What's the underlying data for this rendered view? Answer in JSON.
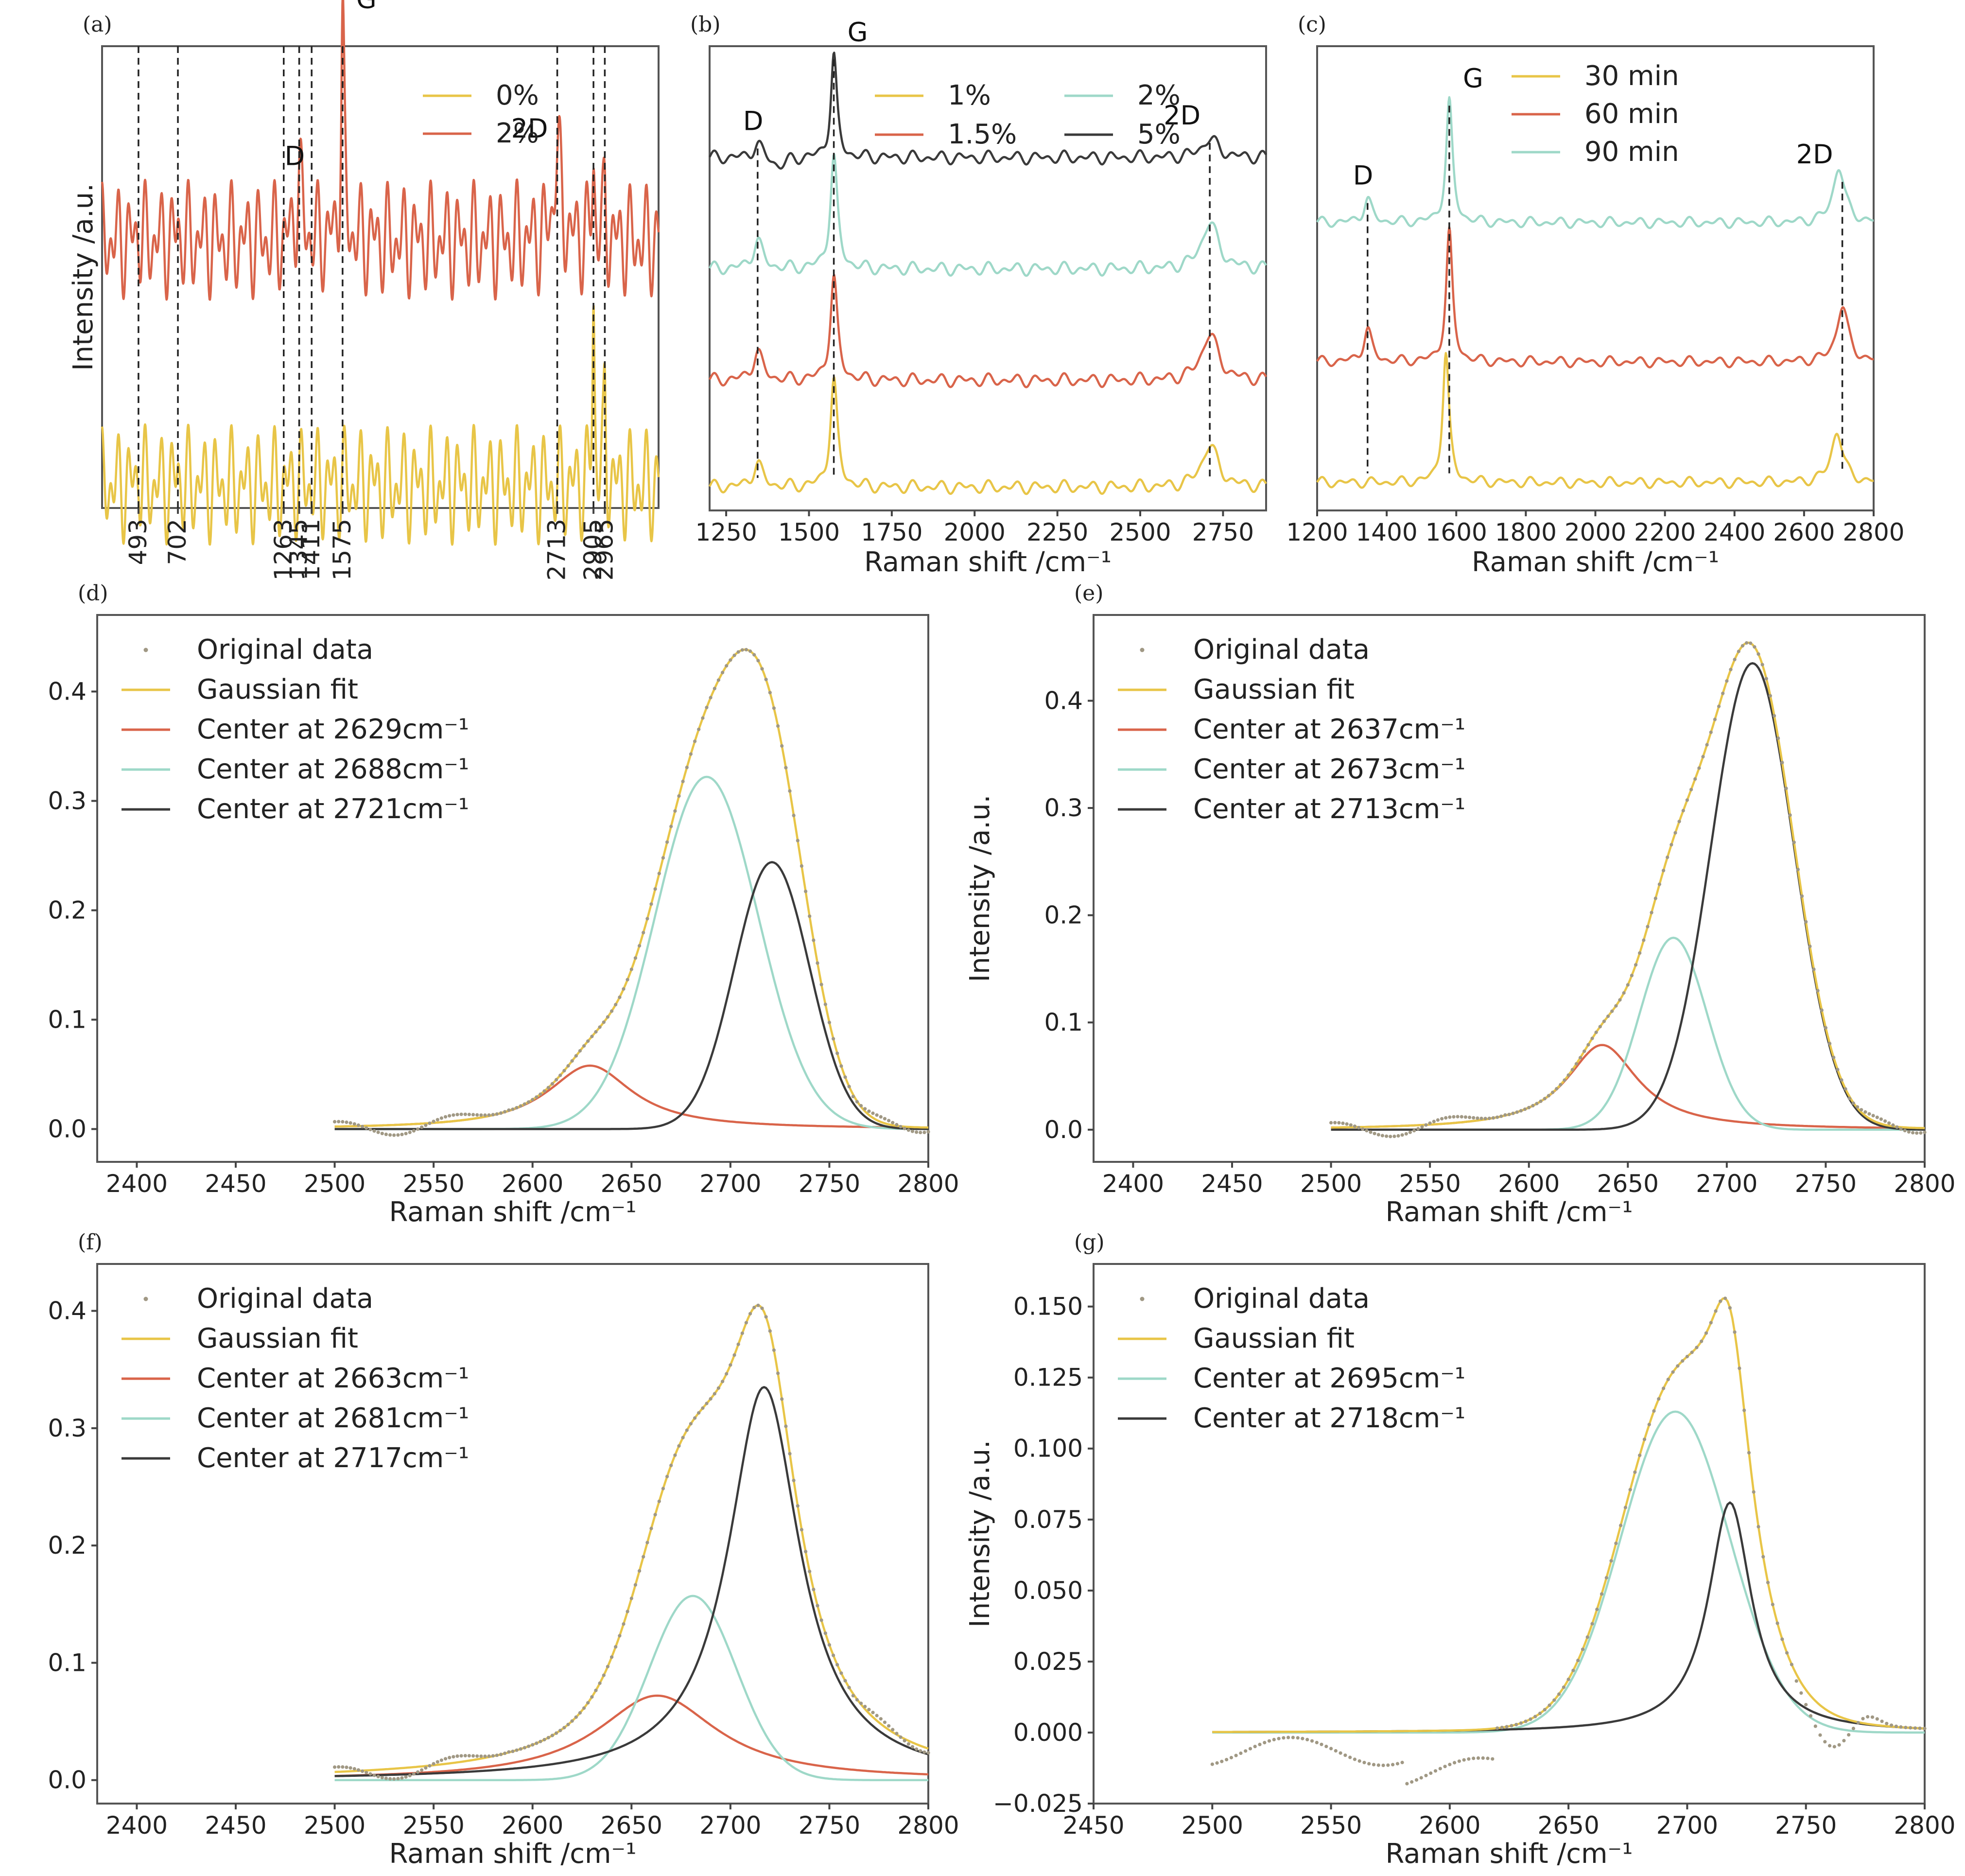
{
  "colors": {
    "yellow": "#e8c547",
    "red": "#d9644a",
    "teal": "#9ed8c8",
    "dark": "#3a3a3a",
    "dots": "#a09884"
  },
  "chart_data": [
    {
      "id": "a",
      "panel_label": "(a)",
      "type": "line",
      "title": "",
      "xlabel": "",
      "ylabel": "Intensity /a.u.",
      "xlim": [
        300,
        3250
      ],
      "x_tick_labels": [
        "493",
        "702",
        "1263",
        "1345",
        "1411",
        "1575",
        "2713",
        "2905",
        "2965"
      ],
      "marked_positions": [
        493,
        702,
        1263,
        1345,
        1411,
        1575,
        2713,
        2905,
        2965
      ],
      "peak_labels": [
        {
          "text": "D",
          "x": 1345
        },
        {
          "text": "G",
          "x": 1575
        },
        {
          "text": "2D",
          "x": 2713
        }
      ],
      "series": [
        {
          "name": "0%",
          "color": "#e8c547",
          "baseline": 0.05,
          "peaks": [
            [
              493,
              0.04,
              8
            ],
            [
              702,
              0.03,
              8
            ],
            [
              1345,
              0.01,
              14
            ],
            [
              1575,
              0.01,
              14
            ],
            [
              2905,
              0.4,
              7
            ],
            [
              2965,
              0.18,
              7
            ]
          ]
        },
        {
          "name": "2%",
          "color": "#d9644a",
          "baseline": 0.58,
          "peaks": [
            [
              493,
              0.03,
              8
            ],
            [
              702,
              0.03,
              8
            ],
            [
              1345,
              0.13,
              18
            ],
            [
              1575,
              0.47,
              10
            ],
            [
              2713,
              0.19,
              22
            ],
            [
              2905,
              0.16,
              9
            ],
            [
              2965,
              0.08,
              8
            ]
          ]
        }
      ],
      "legend": [
        "0%",
        "2%"
      ],
      "legend_position": "top-right"
    },
    {
      "id": "b",
      "panel_label": "(b)",
      "type": "line",
      "xlabel": "Raman shift /cm⁻¹",
      "ylabel": "",
      "xlim": [
        1200,
        2880
      ],
      "x_ticks": [
        1250,
        1500,
        1750,
        2000,
        2250,
        2500,
        2750
      ],
      "peak_labels": [
        {
          "text": "D",
          "x": 1345
        },
        {
          "text": "G",
          "x": 1575
        },
        {
          "text": "2D",
          "x": 2710
        }
      ],
      "marked_positions": [
        1345,
        1575,
        2710
      ],
      "series": [
        {
          "name": "1%",
          "color": "#e8c547",
          "baseline": 0.05,
          "peaks": [
            [
              1345,
              0.05,
              18
            ],
            [
              1575,
              0.23,
              13
            ],
            [
              2710,
              0.09,
              30
            ]
          ]
        },
        {
          "name": "1.5%",
          "color": "#d9644a",
          "baseline": 0.28,
          "peaks": [
            [
              1345,
              0.06,
              18
            ],
            [
              1575,
              0.22,
              13
            ],
            [
              2710,
              0.1,
              30
            ]
          ]
        },
        {
          "name": "2%",
          "color": "#9ed8c8",
          "baseline": 0.52,
          "peaks": [
            [
              1345,
              0.06,
              18
            ],
            [
              1575,
              0.24,
              13
            ],
            [
              2710,
              0.1,
              30
            ]
          ]
        },
        {
          "name": "5%",
          "color": "#3a3a3a",
          "baseline": 0.76,
          "peaks": [
            [
              1345,
              0.03,
              18
            ],
            [
              1410,
              -0.02,
              25
            ],
            [
              1575,
              0.22,
              11
            ],
            [
              2710,
              0.04,
              30
            ]
          ]
        }
      ],
      "legend": [
        "1%",
        "1.5%",
        "2%",
        "5%"
      ],
      "legend_position": "top"
    },
    {
      "id": "c",
      "panel_label": "(c)",
      "type": "line",
      "xlabel": "Raman shift /cm⁻¹",
      "ylabel": "",
      "xlim": [
        1200,
        2800
      ],
      "x_ticks": [
        1200,
        1400,
        1600,
        1800,
        2000,
        2200,
        2400,
        2600,
        2800
      ],
      "peak_labels": [
        {
          "text": "D",
          "x": 1345
        },
        {
          "text": "G",
          "x": 1580
        },
        {
          "text": "2D",
          "x": 2710
        }
      ],
      "marked_positions": [
        1345,
        1580,
        2710
      ],
      "series": [
        {
          "name": "30 min",
          "color": "#e8c547",
          "baseline": 0.06,
          "peaks": [
            [
              1570,
              0.28,
              11
            ],
            [
              2695,
              0.11,
              20
            ]
          ]
        },
        {
          "name": "60 min",
          "color": "#d9644a",
          "baseline": 0.32,
          "peaks": [
            [
              1345,
              0.07,
              14
            ],
            [
              1580,
              0.28,
              11
            ],
            [
              2710,
              0.12,
              20
            ]
          ]
        },
        {
          "name": "90 min",
          "color": "#9ed8c8",
          "baseline": 0.62,
          "peaks": [
            [
              1345,
              0.05,
              14
            ],
            [
              1580,
              0.26,
              11
            ],
            [
              2700,
              0.12,
              20
            ]
          ]
        }
      ],
      "legend": [
        "30 min",
        "60 min",
        "90 min"
      ],
      "legend_position": "top-left"
    },
    {
      "id": "d",
      "panel_label": "(d)",
      "type": "line",
      "xlabel": "Raman shift /cm⁻¹",
      "ylabel": "Intensity /a.u.",
      "xlim": [
        2380,
        2800
      ],
      "ylim": [
        -0.03,
        0.47
      ],
      "x_ticks": [
        2400,
        2450,
        2500,
        2550,
        2600,
        2650,
        2700,
        2750,
        2800
      ],
      "y_ticks": [
        0.0,
        0.1,
        0.2,
        0.3,
        0.4
      ],
      "y_tick_labels": [
        "0.0",
        "0.1",
        "0.2",
        "0.3",
        "0.4"
      ],
      "fit_range": [
        2500,
        2800
      ],
      "components": [
        {
          "name": "Center at 2629cm⁻¹",
          "center": 2629,
          "amp": 0.058,
          "width": 26,
          "shape": "lorentz",
          "color": "#d9644a"
        },
        {
          "name": "Center at 2688cm⁻¹",
          "center": 2688,
          "amp": 0.322,
          "width": 26,
          "shape": "gauss",
          "color": "#9ed8c8"
        },
        {
          "name": "Center at 2721cm⁻¹",
          "center": 2721,
          "amp": 0.244,
          "width": 19,
          "shape": "gauss",
          "color": "#3a3a3a"
        }
      ],
      "legend": [
        "Original data",
        "Gaussian fit",
        "Center at 2629cm⁻¹",
        "Center at 2688cm⁻¹",
        "Center at 2721cm⁻¹"
      ],
      "legend_position": "top-left"
    },
    {
      "id": "e",
      "panel_label": "(e)",
      "type": "line",
      "xlabel": "Raman shift /cm⁻¹",
      "ylabel": "Intensity /a.u.",
      "xlim": [
        2380,
        2800
      ],
      "ylim": [
        -0.03,
        0.48
      ],
      "x_ticks": [
        2400,
        2450,
        2500,
        2550,
        2600,
        2650,
        2700,
        2750,
        2800
      ],
      "y_ticks": [
        0.0,
        0.1,
        0.2,
        0.3,
        0.4
      ],
      "y_tick_labels": [
        "0.0",
        "0.1",
        "0.2",
        "0.3",
        "0.4"
      ],
      "fit_range": [
        2500,
        2800
      ],
      "components": [
        {
          "name": "Center at 2637cm⁻¹",
          "center": 2637,
          "amp": 0.079,
          "width": 22,
          "shape": "lorentz",
          "color": "#d9644a"
        },
        {
          "name": "Center at 2673cm⁻¹",
          "center": 2673,
          "amp": 0.179,
          "width": 17,
          "shape": "gauss",
          "color": "#9ed8c8"
        },
        {
          "name": "Center at 2713cm⁻¹",
          "center": 2713,
          "amp": 0.435,
          "width": 21,
          "shape": "gauss",
          "color": "#3a3a3a"
        }
      ],
      "legend": [
        "Original data",
        "Gaussian fit",
        "Center at 2637cm⁻¹",
        "Center at 2673cm⁻¹",
        "Center at 2713cm⁻¹"
      ],
      "legend_position": "top-left"
    },
    {
      "id": "f",
      "panel_label": "(f)",
      "type": "line",
      "xlabel": "Raman shift /cm⁻¹",
      "ylabel": "Intensity /a.u.",
      "xlim": [
        2380,
        2800
      ],
      "ylim": [
        -0.02,
        0.44
      ],
      "x_ticks": [
        2400,
        2450,
        2500,
        2550,
        2600,
        2650,
        2700,
        2750,
        2800
      ],
      "y_ticks": [
        0.0,
        0.1,
        0.2,
        0.3,
        0.4
      ],
      "y_tick_labels": [
        "0.0",
        "0.1",
        "0.2",
        "0.3",
        "0.4"
      ],
      "fit_range": [
        2500,
        2800
      ],
      "components": [
        {
          "name": "Center at 2663cm⁻¹",
          "center": 2663,
          "amp": 0.072,
          "width": 37,
          "shape": "lorentz",
          "color": "#d9644a"
        },
        {
          "name": "Center at 2681cm⁻¹",
          "center": 2681,
          "amp": 0.157,
          "width": 22,
          "shape": "gauss",
          "color": "#9ed8c8"
        },
        {
          "name": "Center at 2717cm⁻¹",
          "center": 2717,
          "amp": 0.335,
          "width": 22,
          "shape": "lorentz",
          "color": "#3a3a3a"
        }
      ],
      "legend": [
        "Original data",
        "Gaussian fit",
        "Center at 2663cm⁻¹",
        "Center at 2681cm⁻¹",
        "Center at 2717cm⁻¹"
      ],
      "legend_position": "top-left"
    },
    {
      "id": "g",
      "panel_label": "(g)",
      "type": "line",
      "xlabel": "Raman shift /cm⁻¹",
      "ylabel": "Intensity /a.u.",
      "xlim": [
        2450,
        2800
      ],
      "ylim": [
        -0.025,
        0.165
      ],
      "x_ticks": [
        2450,
        2500,
        2550,
        2600,
        2650,
        2700,
        2750,
        2800
      ],
      "y_ticks": [
        -0.025,
        0.0,
        0.025,
        0.05,
        0.075,
        0.1,
        0.125,
        0.15
      ],
      "y_tick_labels": [
        "−0.025",
        "0.000",
        "0.025",
        "0.050",
        "0.075",
        "0.100",
        "0.125",
        "0.150"
      ],
      "fit_range": [
        2500,
        2800
      ],
      "components": [
        {
          "name": "Center at 2695cm⁻¹",
          "center": 2695,
          "amp": 0.113,
          "width": 23,
          "shape": "gauss",
          "color": "#9ed8c8"
        },
        {
          "name": "Center at 2718cm⁻¹",
          "center": 2718,
          "amp": 0.081,
          "width": 11,
          "shape": "lorentz",
          "color": "#3a3a3a"
        }
      ],
      "legend": [
        "Original data",
        "Gaussian fit",
        "Center at 2695cm⁻¹",
        "Center at 2718cm⁻¹"
      ],
      "legend_position": "top-left"
    }
  ]
}
